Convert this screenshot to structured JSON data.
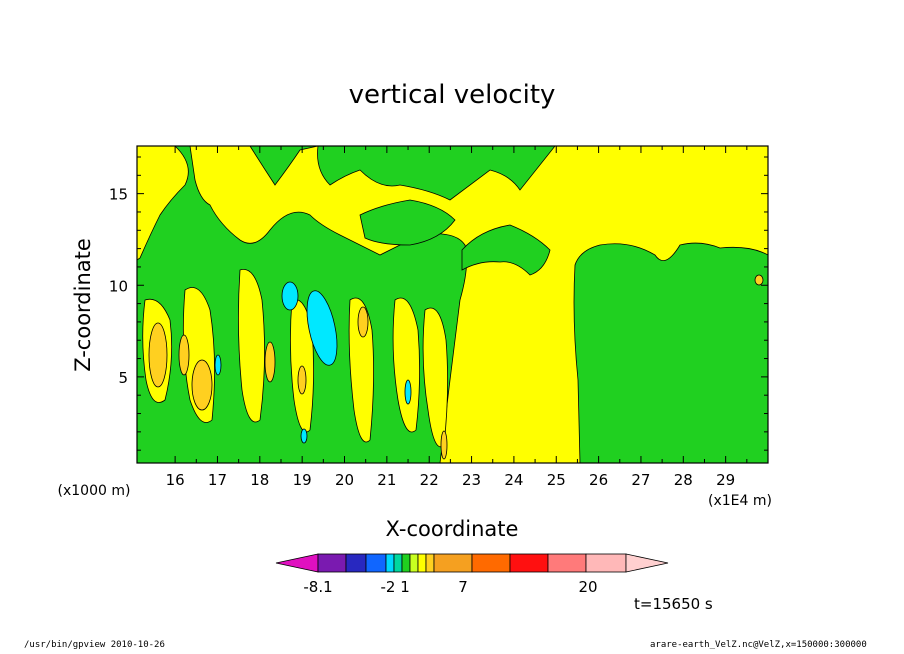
{
  "chart_data": {
    "type": "heatmap",
    "title": "vertical velocity",
    "xlabel": "X-coordinate",
    "ylabel": "Z-coordinate",
    "x_unit_left": "(x1000 m)",
    "x_unit_right": "(x1E4 m)",
    "x_ticks": [
      "16",
      "17",
      "18",
      "19",
      "20",
      "21",
      "22",
      "23",
      "24",
      "25",
      "26",
      "27",
      "28",
      "29"
    ],
    "y_ticks": [
      "5",
      "10",
      "15"
    ],
    "xlim": [
      15.1,
      30.0
    ],
    "ylim": [
      0.3,
      17.6
    ],
    "colorbar": {
      "tick_labels": [
        "-8.1",
        "-2",
        "1",
        "7",
        "20"
      ],
      "colors": [
        "#e010c0",
        "#7a1ab0",
        "#2828c0",
        "#1066ff",
        "#00d8ff",
        "#00d8a0",
        "#20d020",
        "#c8ff20",
        "#ffff00",
        "#ffd020",
        "#f5a020",
        "#ff6a00",
        "#ff1010",
        "#ff7a7a",
        "#ffb8b8",
        "#ffd0d0"
      ]
    },
    "time_label": "t=15650 s"
  },
  "footer": {
    "left": "/usr/bin/gpview   2010-10-26",
    "right": "arare-earth_VelZ.nc@VelZ,x=150000:300000"
  }
}
